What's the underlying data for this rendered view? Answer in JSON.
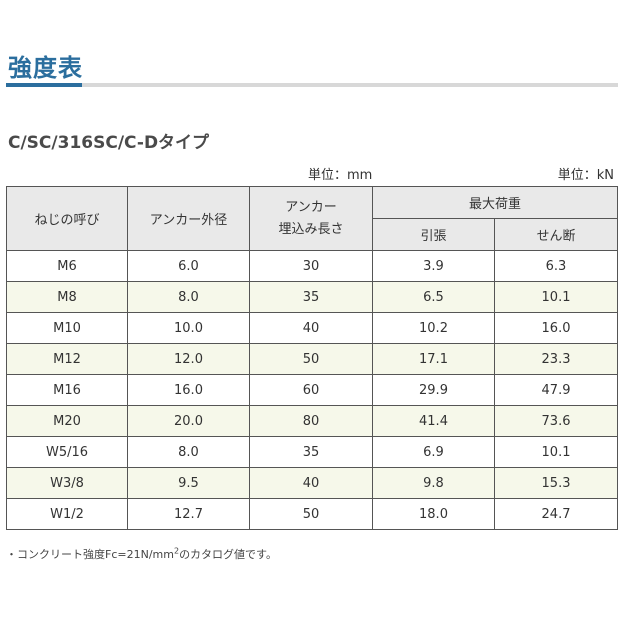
{
  "page": {
    "title": "強度表",
    "subtitle": "C/SC/316SC/C-Dタイプ",
    "unit_left": "単位：mm",
    "unit_right": "単位：kN"
  },
  "table": {
    "headers": {
      "nominal": "ねじの呼び",
      "outer_diameter": "アンカー外径",
      "embed_line1": "アンカー",
      "embed_line2": "埋込み長さ",
      "max_load": "最大荷重",
      "tensile": "引張",
      "shear": "せん断"
    },
    "rows": [
      [
        "M6",
        "6.0",
        "30",
        "3.9",
        "6.3"
      ],
      [
        "M8",
        "8.0",
        "35",
        "6.5",
        "10.1"
      ],
      [
        "M10",
        "10.0",
        "40",
        "10.2",
        "16.0"
      ],
      [
        "M12",
        "12.0",
        "50",
        "17.1",
        "23.3"
      ],
      [
        "M16",
        "16.0",
        "60",
        "29.9",
        "47.9"
      ],
      [
        "M20",
        "20.0",
        "80",
        "41.4",
        "73.6"
      ],
      [
        "W5/16",
        "8.0",
        "35",
        "6.9",
        "10.1"
      ],
      [
        "W3/8",
        "9.5",
        "40",
        "9.8",
        "15.3"
      ],
      [
        "W1/2",
        "12.7",
        "50",
        "18.0",
        "24.7"
      ]
    ]
  },
  "footnote": {
    "text": "・コンクリート強度Fc=21N/mm",
    "sup": "2",
    "suffix": "のカタログ値です。"
  },
  "colors": {
    "accent": "#2b6e9e",
    "header_bg": "#e9e9e9",
    "alt_row_bg": "#f6f8ea"
  }
}
